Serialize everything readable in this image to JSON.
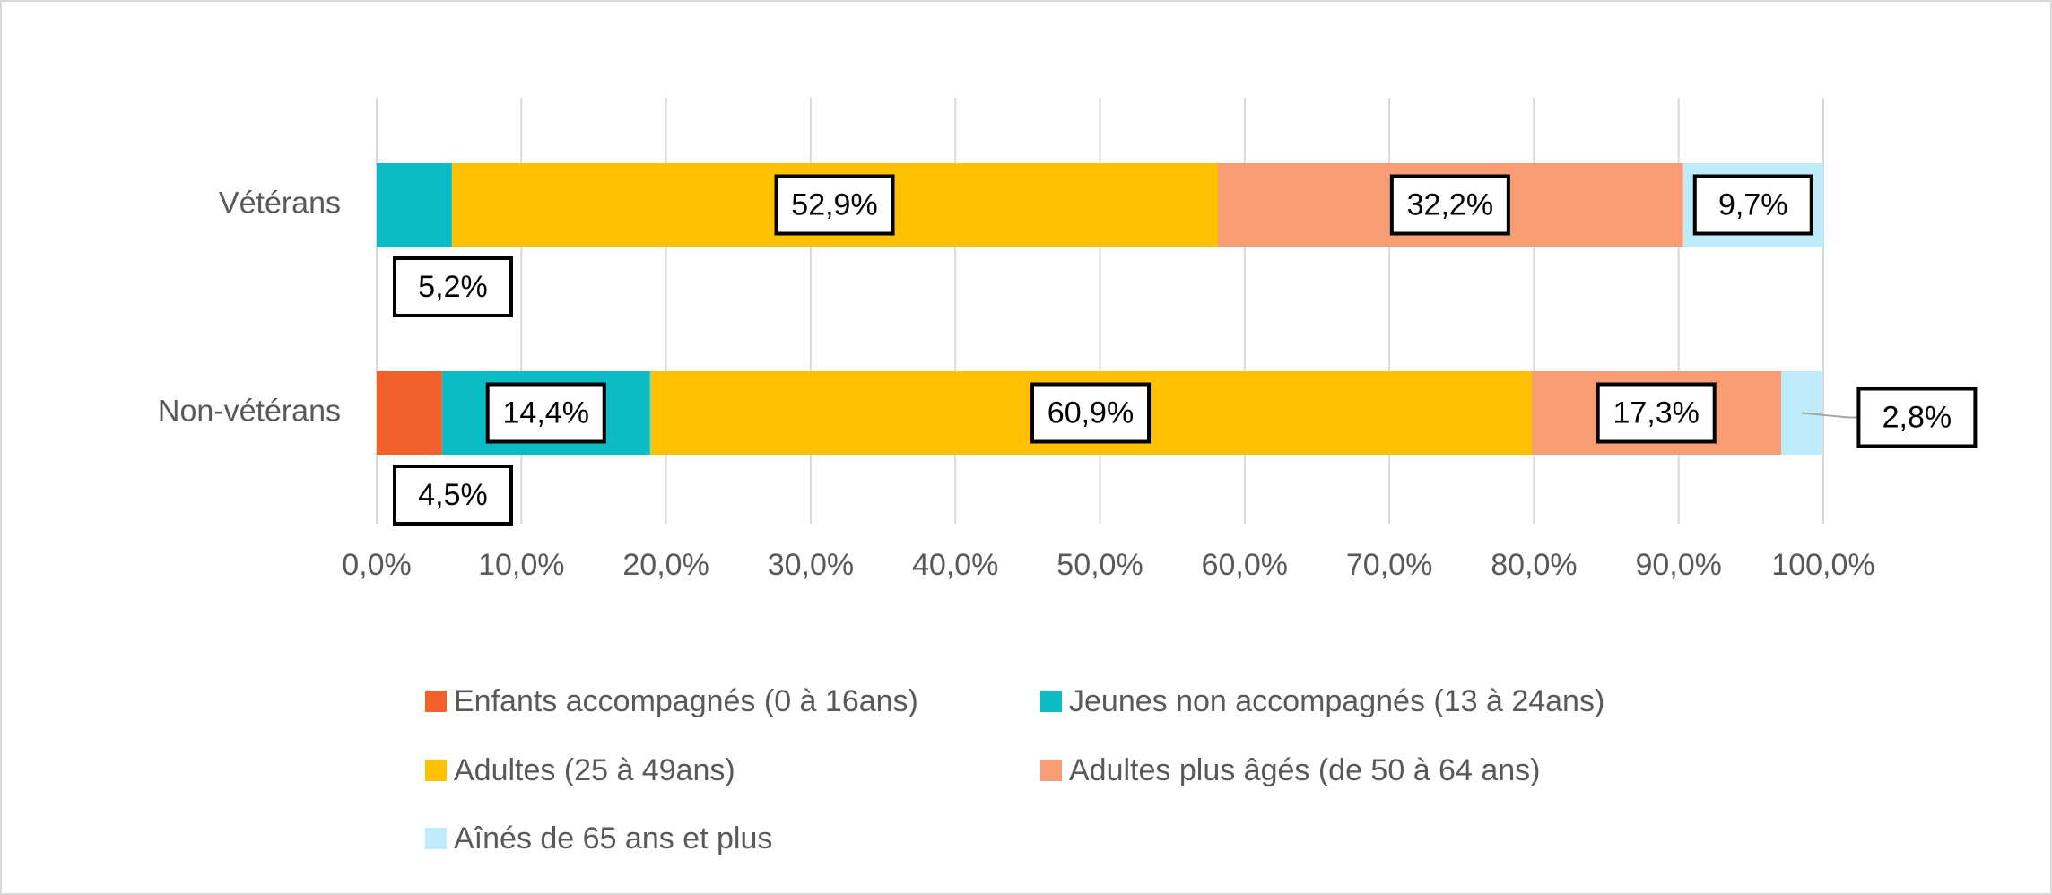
{
  "chart_data": {
    "type": "stacked-bar-horizontal",
    "categories": [
      "Vétérans",
      "Non-vétérans"
    ],
    "series": [
      {
        "name": "Enfants accompagnés (0 à 16ans)",
        "color": "#f0622a",
        "values": [
          0,
          4.5
        ],
        "value_labels": [
          null,
          "4,5%"
        ]
      },
      {
        "name": "Jeunes non accompagnés (13 à 24ans)",
        "color": "#0bbcc6",
        "values": [
          5.2,
          14.4
        ],
        "value_labels": [
          "5,2%",
          "14,4%"
        ]
      },
      {
        "name": "Adultes (25 à 49ans)",
        "color": "#ffc000",
        "values": [
          52.9,
          60.9
        ],
        "value_labels": [
          "52,9%",
          "60,9%"
        ]
      },
      {
        "name": "Adultes plus âgés (de 50 à 64 ans)",
        "color": "#f79d73",
        "values": [
          32.2,
          17.3
        ],
        "value_labels": [
          "32,2%",
          "17,3%"
        ]
      },
      {
        "name": "Aînés de 65 ans et plus",
        "color": "#bdebfa",
        "values": [
          9.7,
          2.8
        ],
        "value_labels": [
          "9,7%",
          "2,8%"
        ]
      }
    ],
    "xlim": [
      0,
      100
    ],
    "xticks": [
      {
        "value": 0,
        "label": "0,0%"
      },
      {
        "value": 10,
        "label": "10,0%"
      },
      {
        "value": 20,
        "label": "20,0%"
      },
      {
        "value": 30,
        "label": "30,0%"
      },
      {
        "value": 40,
        "label": "40,0%"
      },
      {
        "value": 50,
        "label": "50,0%"
      },
      {
        "value": 60,
        "label": "60,0%"
      },
      {
        "value": 70,
        "label": "70,0%"
      },
      {
        "value": 80,
        "label": "80,0%"
      },
      {
        "value": 90,
        "label": "90,0%"
      },
      {
        "value": 100,
        "label": "100,0%"
      }
    ],
    "grid": true,
    "legend": "bottom"
  }
}
